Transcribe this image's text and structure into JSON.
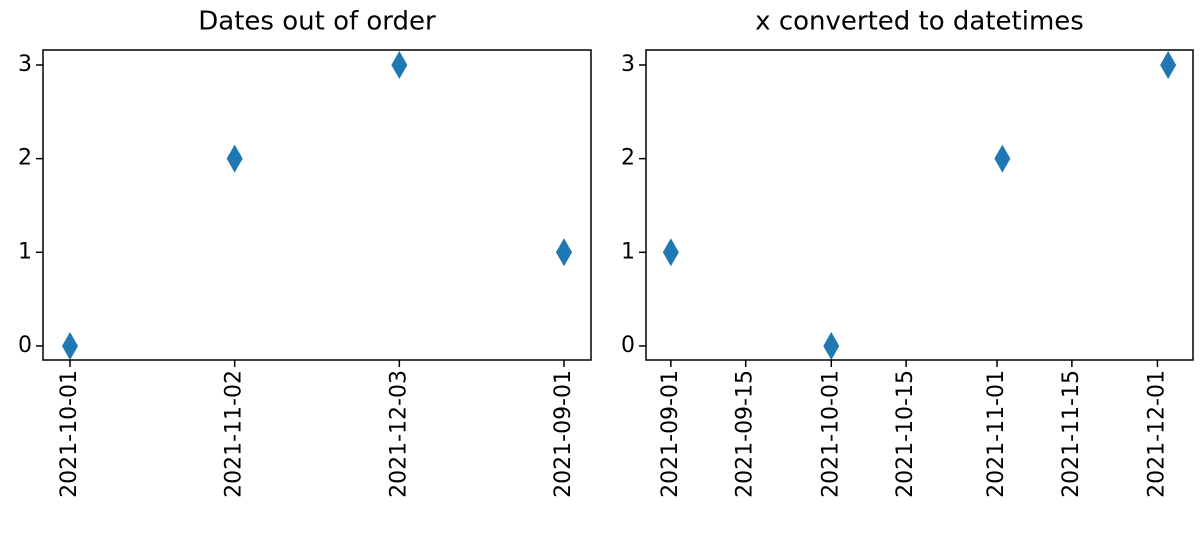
{
  "chart_data": [
    {
      "type": "scatter",
      "title": "Dates out of order",
      "categories": [
        "2021-10-01",
        "2021-11-02",
        "2021-12-03",
        "2021-09-01"
      ],
      "values": [
        0,
        2,
        3,
        1
      ],
      "color": "#1f77b4",
      "marker": "thin-diamond",
      "tick_label_color": "#ff0000",
      "ylim": [
        -0.15,
        3.16
      ],
      "yticks": [
        0,
        1,
        2,
        3
      ]
    },
    {
      "type": "scatter",
      "title": "x converted to datetimes",
      "x": [
        "2021-10-01",
        "2021-11-02",
        "2021-12-03",
        "2021-09-01"
      ],
      "values": [
        0,
        2,
        3,
        1
      ],
      "color": "#1f77b4",
      "marker": "thin-diamond",
      "xlim": [
        "2021-08-27T08:24:00Z",
        "2021-12-07T15:36:00Z"
      ],
      "xticks": [
        "2021-09-01",
        "2021-09-15",
        "2021-10-01",
        "2021-10-15",
        "2021-11-01",
        "2021-11-15",
        "2021-12-01"
      ],
      "ylim": [
        -0.15,
        3.16
      ],
      "yticks": [
        0,
        1,
        2,
        3
      ]
    }
  ]
}
